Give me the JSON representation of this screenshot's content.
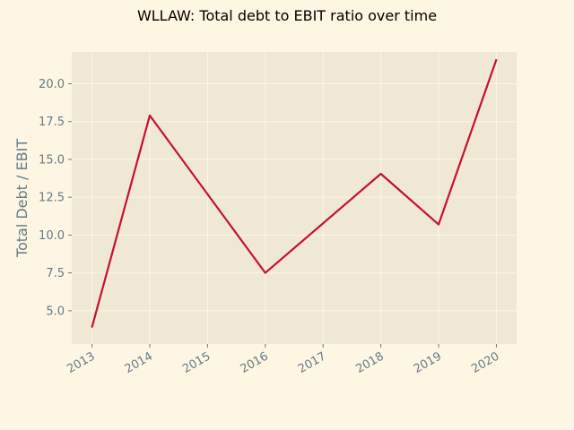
{
  "chart_data": {
    "type": "line",
    "title": "WLLAW: Total debt to EBIT ratio over time",
    "xlabel": "",
    "ylabel": "Total Debt / EBIT",
    "x": [
      "2013",
      "2014",
      "2015",
      "2016",
      "2017",
      "2018",
      "2019",
      "2020"
    ],
    "series": [
      {
        "values": [
          {
            "x": 2013,
            "y": 3.9
          },
          {
            "x": 2014,
            "y": 17.9
          },
          {
            "x": 2016,
            "y": 7.5
          },
          {
            "x": 2018,
            "y": 14.05
          },
          {
            "x": 2019,
            "y": 10.7
          },
          {
            "x": 2020,
            "y": 21.6
          }
        ]
      }
    ],
    "y_ticks": [
      "5.0",
      "7.5",
      "10.0",
      "12.5",
      "15.0",
      "17.5",
      "20.0"
    ],
    "xlim": [
      2012.65,
      2020.35
    ],
    "ylim": [
      2.8,
      22.1
    ],
    "grid": true,
    "colors": {
      "figure_bg": "#fdf6e3",
      "plot_bg": "#eee8d5",
      "grid": "#fdf6e3",
      "line": "#c8102e",
      "tick_text": "#657b83"
    }
  }
}
